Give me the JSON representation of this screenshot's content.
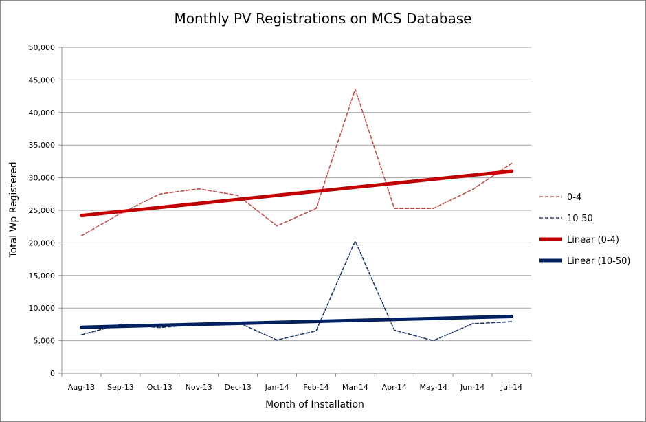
{
  "chart_data": {
    "type": "line",
    "title": "Monthly PV Registrations on MCS Database",
    "xlabel": "Month of Installation",
    "ylabel": "Total Wp Registered",
    "categories": [
      "Aug-13",
      "Sep-13",
      "Oct-13",
      "Nov-13",
      "Dec-13",
      "Jan-14",
      "Feb-14",
      "Mar-14",
      "Apr-14",
      "May-14",
      "Jun-14",
      "Jul-14"
    ],
    "ylim": [
      0,
      50000
    ],
    "yticks": [
      0,
      5000,
      10000,
      15000,
      20000,
      25000,
      30000,
      35000,
      40000,
      45000,
      50000
    ],
    "ytick_labels": [
      "0",
      "5,000",
      "10,000",
      "15,000",
      "20,000",
      "25,000",
      "30,000",
      "35,000",
      "40,000",
      "45,000",
      "50,000"
    ],
    "grid": "horizontal",
    "legend_position": "right",
    "series": [
      {
        "name": "0-4",
        "style": "dashed",
        "color": "#c0504d",
        "values": [
          21100,
          24500,
          27500,
          28300,
          27300,
          22600,
          25300,
          43600,
          25300,
          25300,
          28200,
          32200
        ]
      },
      {
        "name": "10-50",
        "style": "dashed",
        "color": "#1f3864",
        "values": [
          5900,
          7500,
          7000,
          7500,
          7800,
          5100,
          6500,
          20300,
          6600,
          5000,
          7600,
          7900
        ]
      },
      {
        "name": "Linear (0-4)",
        "style": "solid-thick",
        "color": "#c00000",
        "values": [
          24200,
          24820,
          25440,
          26060,
          26680,
          27300,
          27920,
          28540,
          29160,
          29780,
          30400,
          31000
        ]
      },
      {
        "name": "Linear (10-50)",
        "style": "solid-thick",
        "color": "#002060",
        "values": [
          7050,
          7200,
          7350,
          7500,
          7650,
          7800,
          7950,
          8100,
          8250,
          8400,
          8550,
          8700
        ]
      }
    ]
  }
}
